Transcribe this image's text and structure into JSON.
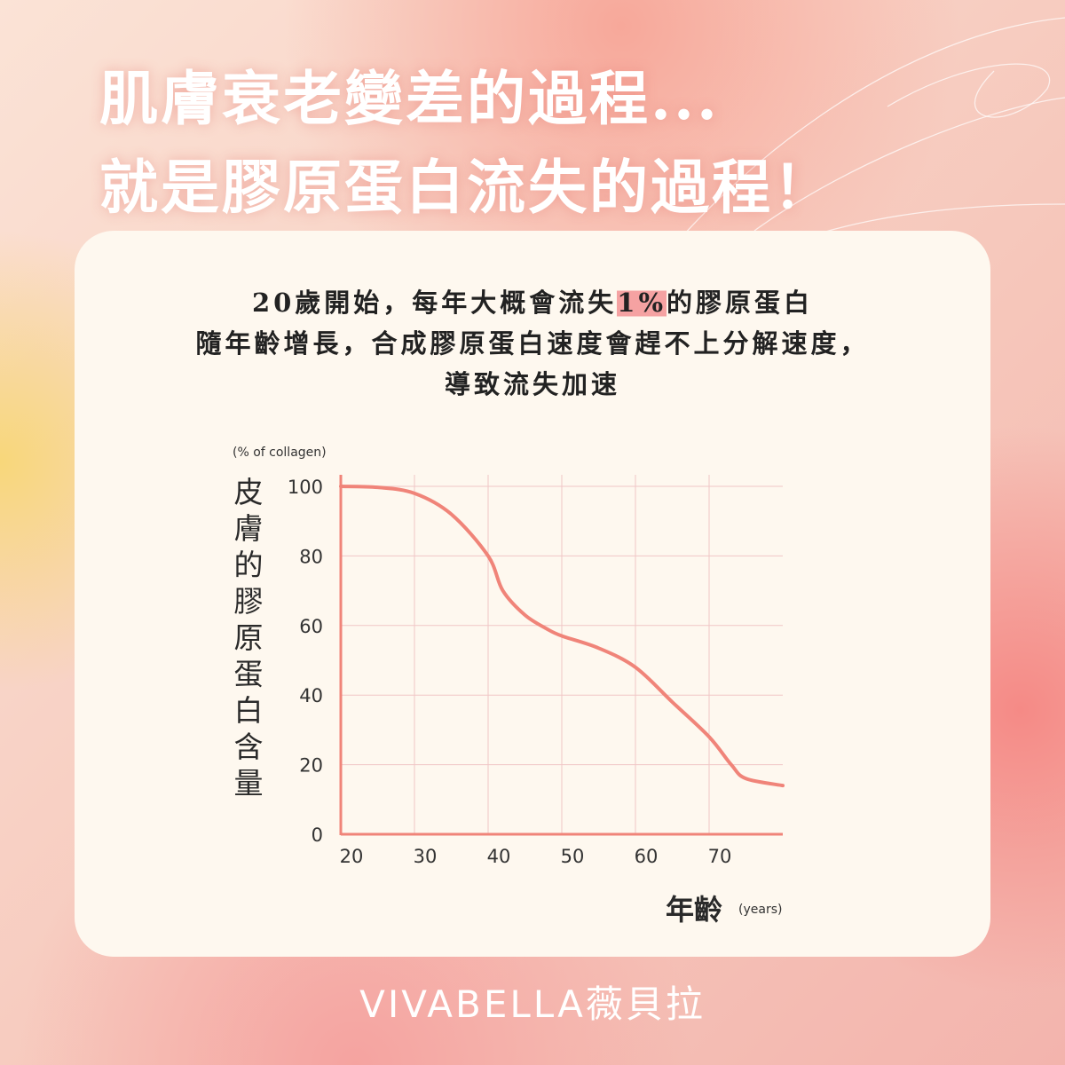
{
  "header": {
    "line1": "肌膚衰老變差的過程...",
    "line2": "就是膠原蛋白流失的過程！"
  },
  "description": {
    "line1_before": "20歲開始，每年大概會流失",
    "line1_highlight": "1%",
    "line1_after": "的膠原蛋白",
    "line2": "隨年齡增長，合成膠原蛋白速度會趕不上分解速度，",
    "line3": "導致流失加速"
  },
  "brand": {
    "logo": "VIVABELLA薇貝拉"
  },
  "colors": {
    "curve": "#f08479",
    "grid": "#f0c6c6",
    "axis": "#f08479"
  },
  "chart_data": {
    "type": "line",
    "ylabel": "皮膚的膠原蛋白含量",
    "yunit": "(% of collagen)",
    "xlabel": "年齡",
    "xunit": "(years)",
    "xlim": [
      20,
      80
    ],
    "ylim": [
      0,
      100
    ],
    "grid": true,
    "xticks": [
      20,
      30,
      40,
      50,
      60,
      70
    ],
    "yticks": [
      0,
      20,
      40,
      60,
      80,
      100
    ],
    "x": [
      20,
      25,
      30,
      35,
      40,
      42,
      45,
      48,
      50,
      55,
      60,
      65,
      70,
      73,
      75,
      80
    ],
    "y": [
      100,
      99.7,
      98,
      92,
      80,
      70,
      63,
      59,
      57,
      53.5,
      48,
      38,
      28,
      20,
      16,
      14
    ]
  }
}
